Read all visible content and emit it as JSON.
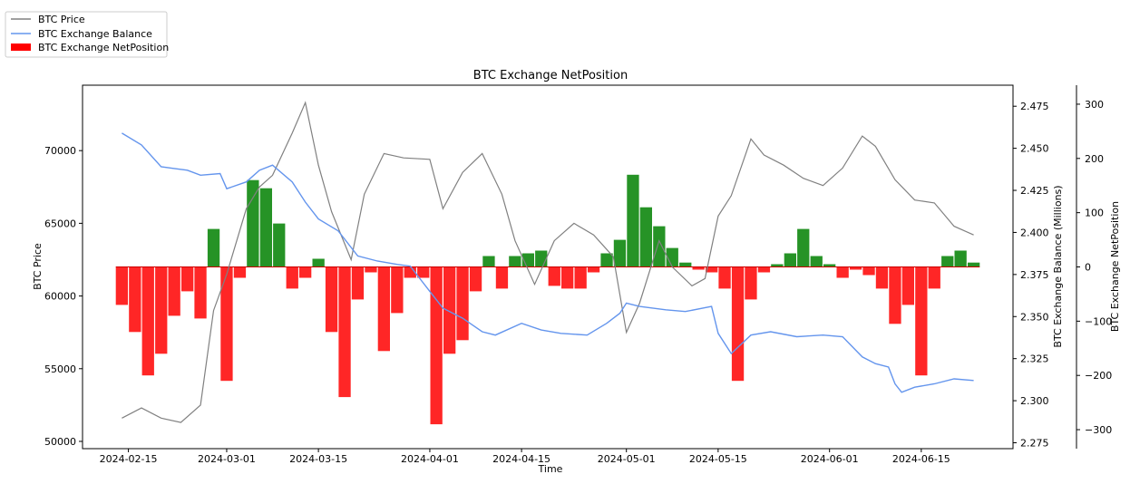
{
  "chart_data": {
    "type": "line",
    "title": "BTC Exchange NetPosition",
    "xlabel": "Time",
    "ylabel_left": "BTC Price",
    "ylabel_right1": "BTC Exchange Balance (Millions)",
    "ylabel_right2": "BTC Exchange NetPosition",
    "x_ticks": [
      "2024-02-15",
      "2024-03-01",
      "2024-03-15",
      "2024-04-01",
      "2024-04-15",
      "2024-05-01",
      "2024-05-15",
      "2024-06-01",
      "2024-06-15"
    ],
    "x_range": [
      "2024-02-08",
      "2024-06-29"
    ],
    "y_left": {
      "ticks": [
        50000,
        55000,
        60000,
        65000,
        70000
      ],
      "labels": [
        "50000",
        "55000",
        "60000",
        "65000",
        "70000"
      ],
      "range": [
        49500,
        74500
      ]
    },
    "y_right1": {
      "ticks": [
        2.275,
        2.3,
        2.325,
        2.35,
        2.375,
        2.4,
        2.425,
        2.45,
        2.475
      ],
      "labels": [
        "2.275",
        "2.300",
        "2.325",
        "2.350",
        "2.375",
        "2.400",
        "2.425",
        "2.450",
        "2.475"
      ],
      "range": [
        2.2715,
        2.4875
      ]
    },
    "y_right2": {
      "ticks": [
        -300,
        -200,
        -100,
        0,
        100,
        200,
        300
      ],
      "labels": [
        "−300",
        "−200",
        "−100",
        "0",
        "100",
        "200",
        "300"
      ],
      "range": [
        -335,
        335
      ]
    },
    "legend": {
      "placement": "top-left outside",
      "entries": [
        "BTC Price",
        "BTC Exchange Balance",
        "BTC Exchange NetPosition"
      ]
    },
    "colors": {
      "price": "#808080",
      "balance": "#6495ed",
      "net_neg": "#ff0000",
      "net_pos": "#008000"
    },
    "series": [
      {
        "name": "BTC Price",
        "axis": "left",
        "dates": [
          "2024-02-14",
          "2024-02-17",
          "2024-02-20",
          "2024-02-23",
          "2024-02-26",
          "2024-02-28",
          "2024-03-01",
          "2024-03-04",
          "2024-03-06",
          "2024-03-08",
          "2024-03-11",
          "2024-03-13",
          "2024-03-15",
          "2024-03-17",
          "2024-03-20",
          "2024-03-22",
          "2024-03-25",
          "2024-03-28",
          "2024-04-01",
          "2024-04-03",
          "2024-04-06",
          "2024-04-09",
          "2024-04-12",
          "2024-04-14",
          "2024-04-17",
          "2024-04-20",
          "2024-04-23",
          "2024-04-26",
          "2024-04-29",
          "2024-05-01",
          "2024-05-03",
          "2024-05-06",
          "2024-05-08",
          "2024-05-11",
          "2024-05-13",
          "2024-05-15",
          "2024-05-17",
          "2024-05-20",
          "2024-05-22",
          "2024-05-25",
          "2024-05-28",
          "2024-05-31",
          "2024-06-03",
          "2024-06-06",
          "2024-06-08",
          "2024-06-11",
          "2024-06-14",
          "2024-06-17",
          "2024-06-20",
          "2024-06-23"
        ],
        "values": [
          51600,
          52300,
          51600,
          51300,
          52500,
          59000,
          61500,
          66000,
          67500,
          68300,
          71200,
          73300,
          69000,
          65800,
          62500,
          67000,
          69800,
          69500,
          69400,
          66000,
          68500,
          69800,
          67000,
          63800,
          60800,
          63800,
          65000,
          64200,
          62700,
          57500,
          59500,
          63800,
          62000,
          60700,
          61200,
          65500,
          66900,
          70800,
          69700,
          69000,
          68100,
          67600,
          68800,
          71000,
          70300,
          68000,
          66600,
          66400,
          64800,
          64200
        ]
      },
      {
        "name": "BTC Exchange Balance",
        "axis": "right1",
        "dates": [
          "2024-02-14",
          "2024-02-17",
          "2024-02-20",
          "2024-02-22",
          "2024-02-24",
          "2024-02-26",
          "2024-02-29",
          "2024-03-01",
          "2024-03-04",
          "2024-03-06",
          "2024-03-08",
          "2024-03-11",
          "2024-03-13",
          "2024-03-15",
          "2024-03-18",
          "2024-03-21",
          "2024-03-24",
          "2024-03-27",
          "2024-03-29",
          "2024-04-01",
          "2024-04-03",
          "2024-04-06",
          "2024-04-09",
          "2024-04-11",
          "2024-04-15",
          "2024-04-18",
          "2024-04-21",
          "2024-04-25",
          "2024-04-28",
          "2024-04-30",
          "2024-05-01",
          "2024-05-03",
          "2024-05-07",
          "2024-05-10",
          "2024-05-14",
          "2024-05-15",
          "2024-05-17",
          "2024-05-20",
          "2024-05-23",
          "2024-05-27",
          "2024-05-31",
          "2024-06-03",
          "2024-06-06",
          "2024-06-08",
          "2024-06-10",
          "2024-06-11",
          "2024-06-12",
          "2024-06-14",
          "2024-06-17",
          "2024-06-20",
          "2024-06-23"
        ],
        "values": [
          2.459,
          2.452,
          2.439,
          2.438,
          2.437,
          2.434,
          2.435,
          2.426,
          2.43,
          2.437,
          2.44,
          2.43,
          2.418,
          2.408,
          2.401,
          2.386,
          2.383,
          2.381,
          2.38,
          2.365,
          2.355,
          2.349,
          2.341,
          2.339,
          2.346,
          2.342,
          2.34,
          2.339,
          2.346,
          2.352,
          2.358,
          2.356,
          2.354,
          2.353,
          2.356,
          2.34,
          2.328,
          2.339,
          2.341,
          2.338,
          2.339,
          2.338,
          2.326,
          2.322,
          2.32,
          2.31,
          2.305,
          2.308,
          2.31,
          2.313,
          2.312
        ]
      },
      {
        "name": "BTC Exchange NetPosition",
        "axis": "right2",
        "dates": [
          "2024-02-14",
          "2024-02-16",
          "2024-02-18",
          "2024-02-20",
          "2024-02-22",
          "2024-02-24",
          "2024-02-26",
          "2024-02-28",
          "2024-03-01",
          "2024-03-03",
          "2024-03-05",
          "2024-03-07",
          "2024-03-09",
          "2024-03-11",
          "2024-03-13",
          "2024-03-15",
          "2024-03-17",
          "2024-03-19",
          "2024-03-21",
          "2024-03-23",
          "2024-03-25",
          "2024-03-27",
          "2024-03-29",
          "2024-03-31",
          "2024-04-02",
          "2024-04-04",
          "2024-04-06",
          "2024-04-08",
          "2024-04-10",
          "2024-04-12",
          "2024-04-14",
          "2024-04-16",
          "2024-04-18",
          "2024-04-20",
          "2024-04-22",
          "2024-04-24",
          "2024-04-26",
          "2024-04-28",
          "2024-04-30",
          "2024-05-02",
          "2024-05-04",
          "2024-05-06",
          "2024-05-08",
          "2024-05-10",
          "2024-05-12",
          "2024-05-14",
          "2024-05-16",
          "2024-05-18",
          "2024-05-20",
          "2024-05-22",
          "2024-05-24",
          "2024-05-26",
          "2024-05-28",
          "2024-05-30",
          "2024-06-01",
          "2024-06-03",
          "2024-06-05",
          "2024-06-07",
          "2024-06-09",
          "2024-06-11",
          "2024-06-13",
          "2024-06-15",
          "2024-06-17",
          "2024-06-19",
          "2024-06-21",
          "2024-06-23"
        ],
        "values": [
          -70,
          -120,
          -200,
          -160,
          -90,
          -45,
          -95,
          70,
          -210,
          -20,
          160,
          145,
          80,
          -40,
          -20,
          15,
          -120,
          -240,
          -60,
          -10,
          -155,
          -85,
          -20,
          -20,
          -290,
          -160,
          -135,
          -45,
          20,
          -40,
          20,
          25,
          30,
          -35,
          -40,
          -40,
          -10,
          25,
          50,
          170,
          110,
          75,
          35,
          8,
          -5,
          -10,
          -40,
          -210,
          -60,
          -10,
          5,
          25,
          70,
          20,
          5,
          -20,
          -5,
          -15,
          -40,
          -105,
          -70,
          -200,
          -40,
          20,
          30,
          8
        ]
      }
    ]
  }
}
